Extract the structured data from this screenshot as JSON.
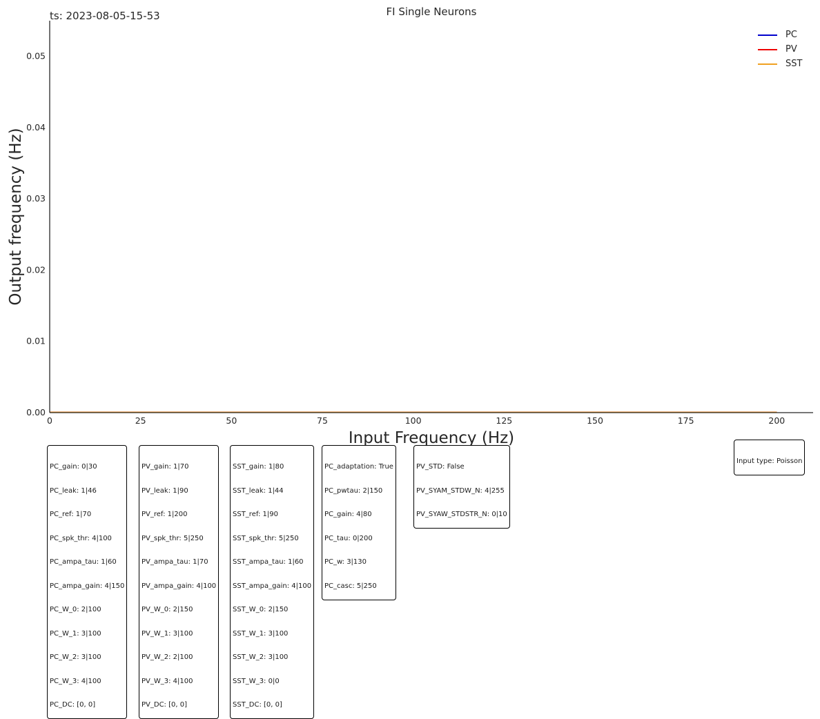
{
  "timestamp": "ts: 2023-08-05-15-53",
  "chart_data": {
    "type": "line",
    "title": "FI Single Neurons",
    "xlabel": "Input Frequency (Hz)",
    "ylabel": "Output frequency (Hz)",
    "xlim": [
      0,
      210
    ],
    "ylim": [
      0,
      0.055
    ],
    "xticks": [
      0,
      25,
      50,
      75,
      100,
      125,
      150,
      175,
      200
    ],
    "yticks": [
      0.0,
      0.01,
      0.02,
      0.03,
      0.04,
      0.05
    ],
    "ytick_labels": [
      "0.00",
      "0.01",
      "0.02",
      "0.03",
      "0.04",
      "0.05"
    ],
    "grid": false,
    "legend_position": "top-right",
    "x": [
      0,
      25,
      50,
      75,
      100,
      125,
      150,
      175,
      200
    ],
    "series": [
      {
        "name": "PC",
        "color": "#0000cc",
        "values": [
          0,
          0,
          0,
          0,
          0,
          0,
          0,
          0,
          0
        ]
      },
      {
        "name": "PV",
        "color": "#ee0000",
        "values": [
          0,
          0,
          0,
          0,
          0,
          0,
          0,
          0,
          0
        ]
      },
      {
        "name": "SST",
        "color": "#f0a020",
        "values": [
          0,
          0,
          0,
          0,
          0,
          0,
          0,
          0,
          0
        ]
      }
    ]
  },
  "param_boxes": [
    [
      "PC_gain: 0|30",
      "PC_leak: 1|46",
      "PC_ref: 1|70",
      "PC_spk_thr: 4|100",
      "PC_ampa_tau: 1|60",
      "PC_ampa_gain: 4|150",
      "PC_W_0: 2|100",
      "PC_W_1: 3|100",
      "PC_W_2: 3|100",
      "PC_W_3: 4|100",
      "PC_DC: [0, 0]"
    ],
    [
      "PV_gain: 1|70",
      "PV_leak: 1|90",
      "PV_ref: 1|200",
      "PV_spk_thr: 5|250",
      "PV_ampa_tau: 1|70",
      "PV_ampa_gain: 4|100",
      "PV_W_0: 2|150",
      "PV_W_1: 3|100",
      "PV_W_2: 2|100",
      "PV_W_3: 4|100",
      "PV_DC: [0, 0]"
    ],
    [
      "SST_gain: 1|80",
      "SST_leak: 1|44",
      "SST_ref: 1|90",
      "SST_spk_thr: 5|250",
      "SST_ampa_tau: 1|60",
      "SST_ampa_gain: 4|100",
      "SST_W_0: 2|150",
      "SST_W_1: 3|100",
      "SST_W_2: 3|100",
      "SST_W_3: 0|0",
      "SST_DC: [0, 0]"
    ],
    [
      "PC_adaptation: True",
      "PC_pwtau: 2|150",
      "PC_gain: 4|80",
      "PC_tau: 0|200",
      "PC_w: 3|130",
      "PC_casc: 5|250"
    ],
    [
      "PV_STD: False",
      "PV_SYAM_STDW_N: 4|255",
      "PV_SYAW_STDSTR_N: 0|10"
    ]
  ],
  "input_type": "Input type: Poisson"
}
